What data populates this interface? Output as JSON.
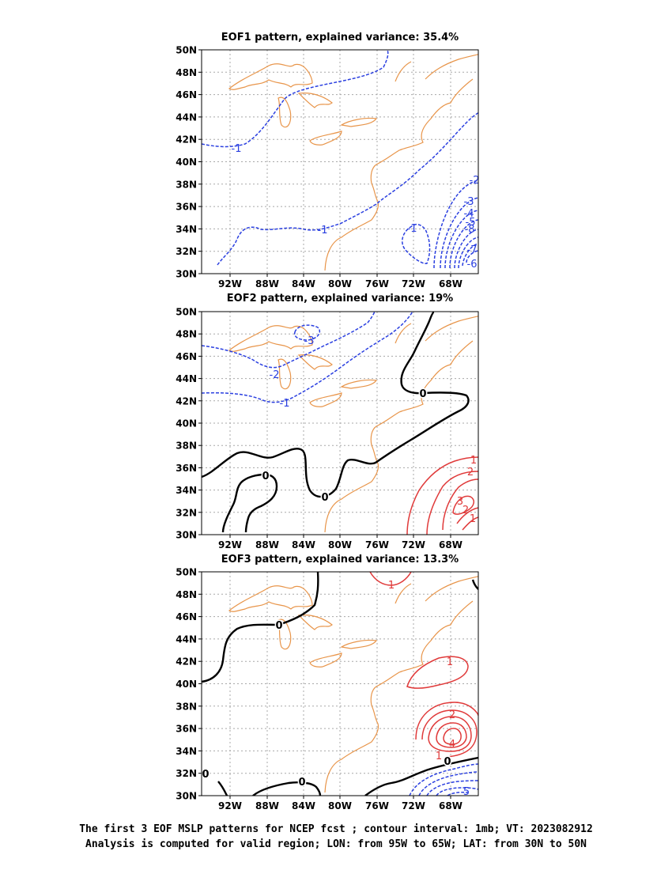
{
  "colors": {
    "coast": "#e8954a",
    "grid": "#a8a8a8",
    "negative": "#2a3fe0",
    "positive": "#e03a3a",
    "zero": "#000000"
  },
  "x_ticks": [
    "92W",
    "88W",
    "84W",
    "80W",
    "76W",
    "72W",
    "68W"
  ],
  "y_ticks": [
    "50N",
    "48N",
    "46N",
    "44N",
    "42N",
    "40N",
    "38N",
    "36N",
    "34N",
    "32N",
    "30N"
  ],
  "panels": [
    {
      "title": "EOF1 pattern, explained variance: 35.4%",
      "labels": [
        "-1",
        "-1",
        "-1",
        "-2",
        "-3",
        "-4",
        "-5",
        "-6",
        "-7",
        "-8"
      ]
    },
    {
      "title": "EOF2 pattern, explained variance: 19%",
      "labels": [
        "-3",
        "-2",
        "-1",
        "0",
        "0",
        "0",
        "1",
        "2",
        "3",
        "2",
        "1"
      ]
    },
    {
      "title": "EOF3 pattern, explained variance: 13.3%",
      "labels": [
        "1",
        "0",
        "0",
        "0",
        "1",
        "2",
        "4",
        "1",
        "0",
        "5"
      ]
    }
  ],
  "footer": {
    "line1": "The first 3 EOF MSLP patterns for NCEP fcst ; contour interval: 1mb; VT: 2023082912",
    "line2": "Analysis is computed for valid region; LON: from 95W to 65W; LAT: from 30N to 50N"
  }
}
